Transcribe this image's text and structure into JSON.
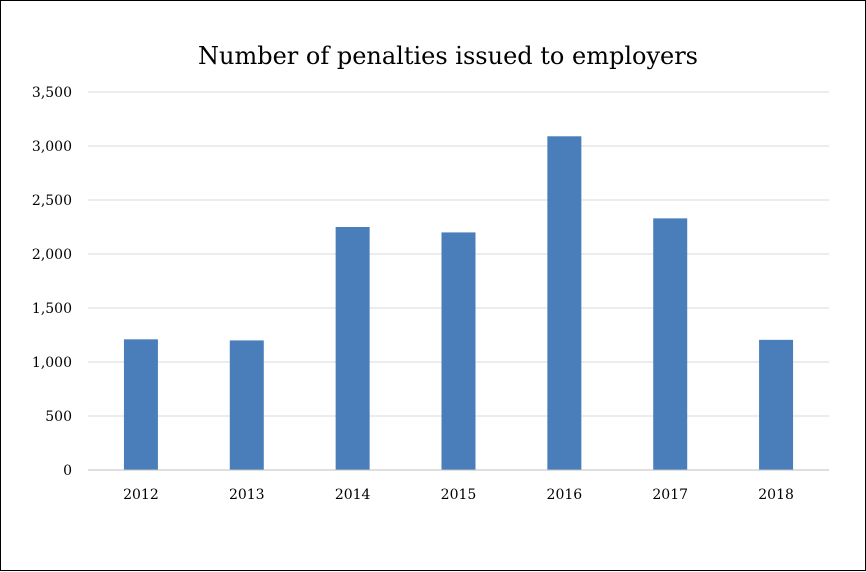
{
  "chart_data": {
    "type": "bar",
    "title": "Number of penalties issued to employers",
    "xlabel": "",
    "ylabel": "",
    "categories": [
      "2012",
      "2013",
      "2014",
      "2015",
      "2016",
      "2017",
      "2018"
    ],
    "values": [
      1210,
      1200,
      2250,
      2200,
      3090,
      2330,
      1205
    ],
    "ylim": [
      0,
      3500
    ],
    "yticks": [
      0,
      500,
      1000,
      1500,
      2000,
      2500,
      3000,
      3500
    ],
    "ytick_labels": [
      "0",
      "500",
      "1,000",
      "1,500",
      "2,000",
      "2,500",
      "3,000",
      "3,500"
    ],
    "grid": true,
    "legend": "none",
    "colors": {
      "bar": "#4a7ebb",
      "grid": "#d9d9d9",
      "axis": "#bfbfbf",
      "text": "#000000"
    }
  }
}
